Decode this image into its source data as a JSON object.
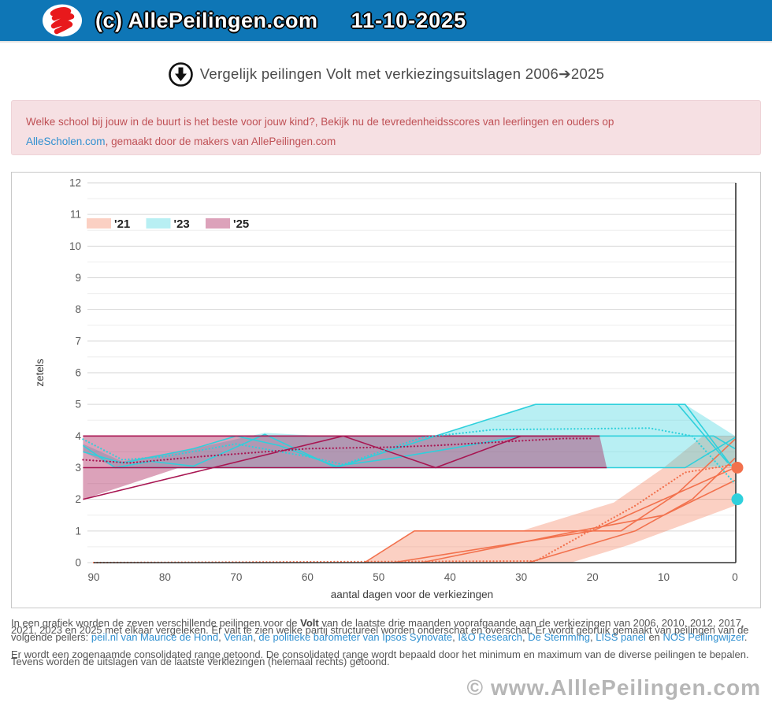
{
  "header": {
    "title": "(c) AllePeilingen.com",
    "date": "11-10-2025"
  },
  "page_title": "Vergelijk peilingen Volt met verkiezingsuitslagen 2006➔2025",
  "notice": {
    "text_before_break": "Welke school bij jouw in de buurt is het beste voor jouw kind?, Bekijk nu de tevredenheidsscores van leerlingen en ouders op",
    "link_label": "AlleScholen.com",
    "text_after_link": ", gemaakt door de makers van AllePeilingen.com"
  },
  "chart_data": {
    "type": "area",
    "xlabel": "aantal dagen voor de verkiezingen",
    "ylabel": "zetels",
    "xlim": [
      90,
      0
    ],
    "ylim": [
      0,
      12
    ],
    "x_ticks": [
      90,
      80,
      70,
      60,
      50,
      40,
      30,
      20,
      10,
      0
    ],
    "y_ticks": [
      0,
      1,
      2,
      3,
      4,
      5,
      6,
      7,
      8,
      9,
      10,
      11,
      12
    ],
    "grid": "on",
    "legend_position": "top-left",
    "legend": [
      {
        "label": "'21",
        "color": "#f2714d",
        "fill": "rgba(243,112,74,0.33)"
      },
      {
        "label": "'23",
        "color": "#2fd0dc",
        "fill": "rgba(47,208,220,0.34)"
      },
      {
        "label": "'25",
        "color": "#a81652",
        "fill": "rgba(168,22,82,0.40)"
      }
    ],
    "series": [
      {
        "name": "2021 consolidated range",
        "type": "band",
        "fill": "rgba(243,112,74,0.33)",
        "polygon": [
          [
            90,
            0
          ],
          [
            52,
            0
          ],
          [
            45,
            1
          ],
          [
            30,
            1
          ],
          [
            17,
            1.9
          ],
          [
            10,
            3
          ],
          [
            4.5,
            4
          ],
          [
            0,
            4
          ],
          [
            0,
            1.8
          ],
          [
            15,
            0.55
          ],
          [
            23,
            0
          ],
          [
            90,
            0
          ]
        ]
      },
      {
        "name": "2023 consolidated range",
        "type": "band",
        "fill": "rgba(47,208,220,0.34)",
        "polygon": [
          [
            91.5,
            3.75
          ],
          [
            86,
            3.2
          ],
          [
            76,
            3.6
          ],
          [
            66,
            4.1
          ],
          [
            58,
            4
          ],
          [
            42,
            4
          ],
          [
            28,
            5
          ],
          [
            7,
            5
          ],
          [
            0,
            4
          ],
          [
            0,
            3.05
          ],
          [
            7,
            3
          ],
          [
            87,
            3
          ],
          [
            91.5,
            3.5
          ]
        ]
      },
      {
        "name": "2025 consolidated range",
        "type": "band",
        "fill": "rgba(168,22,82,0.40)",
        "polygon": [
          [
            91.5,
            4
          ],
          [
            19,
            4
          ],
          [
            18,
            3
          ],
          [
            78,
            3
          ],
          [
            91.5,
            2
          ]
        ]
      },
      {
        "name": "2021 poll a",
        "type": "line",
        "color": "#f2714d",
        "points": [
          [
            52,
            0
          ],
          [
            45,
            1
          ],
          [
            16,
            1
          ],
          [
            8,
            2.2
          ],
          [
            0,
            3.9
          ]
        ]
      },
      {
        "name": "2021 poll b",
        "type": "line",
        "color": "#f2714d",
        "points": [
          [
            48,
            0
          ],
          [
            20,
            1
          ],
          [
            0,
            3
          ]
        ]
      },
      {
        "name": "2021 poll c",
        "type": "line",
        "color": "#f2714d",
        "points": [
          [
            44,
            0
          ],
          [
            22,
            1
          ],
          [
            10,
            1.5
          ],
          [
            0,
            2.6
          ]
        ]
      },
      {
        "name": "2021 poll d",
        "type": "line",
        "color": "#f2714d",
        "points": [
          [
            29,
            0
          ],
          [
            14,
            1
          ],
          [
            6,
            2
          ],
          [
            0,
            3.3
          ]
        ]
      },
      {
        "name": "2023 poll a",
        "type": "line",
        "color": "#2fd0dc",
        "points": [
          [
            91.5,
            3.7
          ],
          [
            87,
            3
          ],
          [
            82,
            3.2
          ],
          [
            76,
            3.05
          ],
          [
            66,
            4.05
          ],
          [
            56,
            3
          ],
          [
            42,
            4
          ],
          [
            28,
            5
          ],
          [
            7,
            5
          ],
          [
            0.5,
            3.05
          ]
        ]
      },
      {
        "name": "2023 poll b",
        "type": "line",
        "color": "#2fd0dc",
        "points": [
          [
            91.5,
            3.5
          ],
          [
            86,
            3.15
          ],
          [
            76,
            3.6
          ],
          [
            70,
            4
          ],
          [
            64,
            3.7
          ],
          [
            56,
            3.05
          ],
          [
            48,
            3.3
          ],
          [
            40,
            3.6
          ],
          [
            30,
            4
          ],
          [
            3,
            4
          ],
          [
            0,
            3.6
          ]
        ]
      },
      {
        "name": "2023 poll c",
        "type": "line",
        "color": "#2fd0dc",
        "points": [
          [
            87,
            3
          ],
          [
            7,
            3
          ],
          [
            0,
            3.95
          ]
        ]
      },
      {
        "name": "2023 poll d",
        "type": "line",
        "color": "#2fd0dc",
        "points": [
          [
            8,
            5
          ],
          [
            1,
            3.15
          ]
        ]
      },
      {
        "name": "2025 poll a",
        "type": "line",
        "color": "#a81652",
        "points": [
          [
            91.5,
            2
          ],
          [
            55,
            4
          ],
          [
            42,
            3
          ],
          [
            30,
            4
          ],
          [
            19,
            4
          ]
        ]
      },
      {
        "name": "2025 poll b",
        "type": "line",
        "color": "#a81652",
        "points": [
          [
            91.5,
            3
          ],
          [
            18,
            3
          ]
        ]
      },
      {
        "name": "2025 poll c",
        "type": "line",
        "color": "#a81652",
        "points": [
          [
            91.5,
            4
          ],
          [
            19,
            4
          ]
        ]
      },
      {
        "name": "2021 average",
        "type": "dotted",
        "color": "#f2714d",
        "points": [
          [
            90,
            0
          ],
          [
            28,
            0.05
          ],
          [
            14,
            1.8
          ],
          [
            7,
            2.85
          ],
          [
            0,
            3.1
          ]
        ]
      },
      {
        "name": "2023 average",
        "type": "dotted",
        "color": "#2fd0dc",
        "points": [
          [
            91.5,
            3.9
          ],
          [
            86,
            3.25
          ],
          [
            80,
            3.35
          ],
          [
            70,
            3.75
          ],
          [
            60,
            3.35
          ],
          [
            55,
            3.1
          ],
          [
            44,
            3.95
          ],
          [
            34,
            4.2
          ],
          [
            12,
            4.25
          ],
          [
            6,
            4
          ],
          [
            0,
            2.5
          ]
        ]
      },
      {
        "name": "2025 average",
        "type": "dotted",
        "color": "#a81652",
        "points": [
          [
            91.5,
            3.25
          ],
          [
            85,
            3.15
          ],
          [
            75,
            3.35
          ],
          [
            60,
            3.6
          ],
          [
            48,
            3.65
          ],
          [
            42,
            3.7
          ],
          [
            30,
            3.85
          ],
          [
            24,
            3.92
          ],
          [
            20,
            3.92
          ]
        ]
      },
      {
        "name": "uitslag 2021",
        "type": "dot",
        "x": 0,
        "y": 3,
        "color": "#f2714d"
      },
      {
        "name": "uitslag 2023",
        "type": "dot",
        "x": 0,
        "y": 2,
        "color": "#2fd0dc"
      }
    ]
  },
  "paragraphs": {
    "p1_segments": [
      {
        "t": "In een grafiek worden de zeven verschillende peilingen voor de ",
        "k": "text"
      },
      {
        "t": "Volt",
        "k": "bold"
      },
      {
        "t": " van de laatste drie maanden voorafgaande aan de verkiezingen van 2006, 2010, 2012, 2017, 2021, 2023 en 2025 met elkaar vergeleken. Er valt te zien welke partij structureel worden onderschat en overschat. Er wordt gebruik gemaakt van peilingen van de volgende peilers: ",
        "k": "text"
      },
      {
        "t": "peil.nl van Maurice de Hond",
        "k": "link"
      },
      {
        "t": ", ",
        "k": "text"
      },
      {
        "t": "Verian",
        "k": "link"
      },
      {
        "t": ", ",
        "k": "text"
      },
      {
        "t": "de politieke barometer van Ipsos Synovate",
        "k": "link"
      },
      {
        "t": ", ",
        "k": "text"
      },
      {
        "t": "I&O Research",
        "k": "link"
      },
      {
        "t": ", ",
        "k": "text"
      },
      {
        "t": "De Stemming",
        "k": "link"
      },
      {
        "t": ", ",
        "k": "text"
      },
      {
        "t": "LISS panel",
        "k": "link"
      },
      {
        "t": " en ",
        "k": "text"
      },
      {
        "t": "NOS Peilingwijzer",
        "k": "link"
      },
      {
        "t": ".",
        "k": "text"
      }
    ],
    "p2": "Er wordt een zogenaamde consolidated range getoond. De consolidated range wordt bepaald door het minimum en maximum van de diverse peilingen te bepalen. Tevens worden de uitslagen van de laatste verkiezingen (helemaal rechts) getoond."
  },
  "watermark": "© www.AlllePeilingen.com"
}
